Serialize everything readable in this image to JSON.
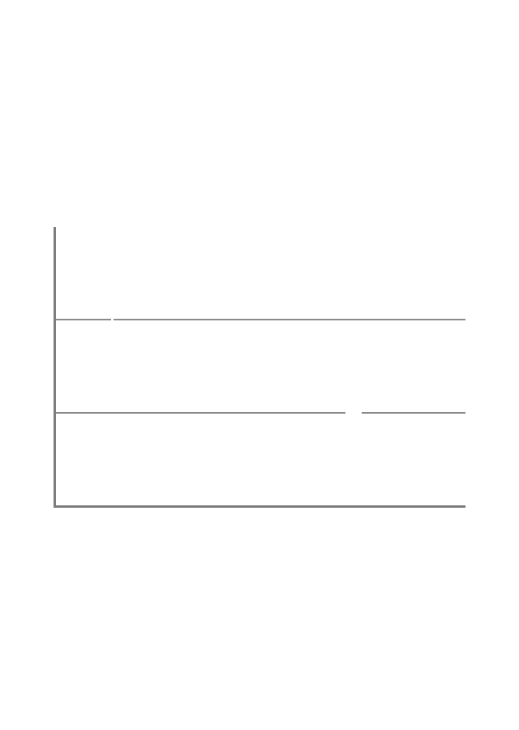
{
  "figure": {
    "panel_count": 3,
    "line_color": "#7d7d7d",
    "background_color": "#ffffff"
  }
}
